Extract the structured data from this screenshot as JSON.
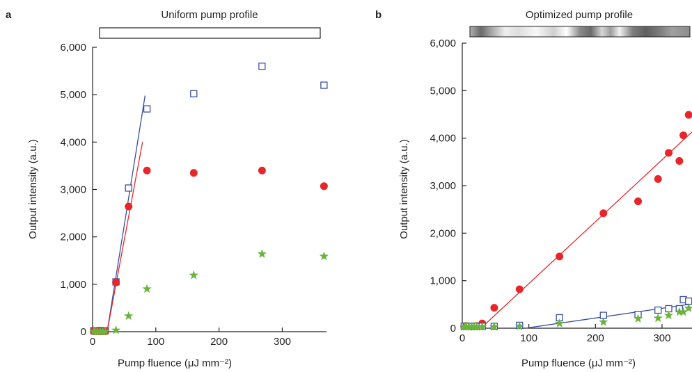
{
  "chart_data": [
    {
      "type": "scatter",
      "panel_label": "a",
      "title": "Uniform pump profile",
      "profile_bar": "uniform",
      "xlabel": "Pump fluence (μJ mm⁻²)",
      "ylabel": "Output intensity (a.u.)",
      "xlim": [
        0,
        370
      ],
      "ylim": [
        0,
        6000
      ],
      "xticks": [
        0,
        100,
        200,
        300
      ],
      "xticklabels": [
        "0",
        "100",
        "200",
        "300"
      ],
      "yticks": [
        0,
        1000,
        2000,
        3000,
        4000,
        5000,
        6000
      ],
      "yticklabels": [
        "0",
        "1,000",
        "2,000",
        "3,000",
        "4,000",
        "5,000",
        "6,000"
      ],
      "series": [
        {
          "marker": "open-square",
          "color": "#3a4fa3",
          "points": [
            [
              2,
              20
            ],
            [
              5,
              15
            ],
            [
              8,
              20
            ],
            [
              12,
              25
            ],
            [
              16,
              10
            ],
            [
              20,
              20
            ],
            [
              37,
              1050
            ],
            [
              57,
              3030
            ],
            [
              86,
              4700
            ],
            [
              160,
              5020
            ],
            [
              268,
              5600
            ],
            [
              366,
              5200
            ]
          ]
        },
        {
          "marker": "filled-circle",
          "color": "#e8262a",
          "points": [
            [
              2,
              10
            ],
            [
              5,
              15
            ],
            [
              8,
              10
            ],
            [
              12,
              5
            ],
            [
              16,
              10
            ],
            [
              20,
              10
            ],
            [
              37,
              1040
            ],
            [
              57,
              2640
            ],
            [
              86,
              3400
            ],
            [
              160,
              3350
            ],
            [
              268,
              3400
            ],
            [
              366,
              3070
            ]
          ]
        },
        {
          "marker": "star",
          "color": "#6ab33e",
          "points": [
            [
              2,
              5
            ],
            [
              5,
              5
            ],
            [
              8,
              5
            ],
            [
              12,
              5
            ],
            [
              16,
              5
            ],
            [
              20,
              5
            ],
            [
              37,
              30
            ],
            [
              57,
              330
            ],
            [
              86,
              900
            ],
            [
              160,
              1190
            ],
            [
              268,
              1640
            ],
            [
              366,
              1590
            ]
          ]
        }
      ],
      "fit_lines": [
        {
          "color": "#3a4fa3",
          "x": [
            23,
            83
          ],
          "y": [
            0,
            4980
          ]
        },
        {
          "color": "#e8262a",
          "x": [
            23,
            79
          ],
          "y": [
            0,
            4000
          ]
        }
      ]
    },
    {
      "type": "scatter",
      "panel_label": "b",
      "title": "Optimized pump profile",
      "profile_bar": "optimized",
      "xlabel": "Pump fluence (μJ mm⁻²)",
      "ylabel": "Output intensity (a.u.)",
      "xlim": [
        0,
        345
      ],
      "ylim": [
        0,
        6000
      ],
      "xticks": [
        0,
        100,
        200,
        300
      ],
      "xticklabels": [
        "0",
        "100",
        "200",
        "300"
      ],
      "yticks": [
        0,
        1000,
        2000,
        3000,
        4000,
        5000,
        6000
      ],
      "yticklabels": [
        "0",
        "1,000",
        "2,000",
        "3,000",
        "4,000",
        "5,000",
        "6,000"
      ],
      "series": [
        {
          "marker": "filled-circle",
          "color": "#e8262a",
          "points": [
            [
              3,
              40
            ],
            [
              6,
              45
            ],
            [
              10,
              40
            ],
            [
              14,
              35
            ],
            [
              18,
              40
            ],
            [
              22,
              45
            ],
            [
              30,
              100
            ],
            [
              48,
              430
            ],
            [
              86,
              820
            ],
            [
              146,
              1510
            ],
            [
              212,
              2420
            ],
            [
              264,
              2670
            ],
            [
              294,
              3140
            ],
            [
              310,
              3690
            ],
            [
              326,
              3520
            ],
            [
              332,
              4060
            ],
            [
              340,
              4490
            ]
          ]
        },
        {
          "marker": "open-square",
          "color": "#3a4fa3",
          "points": [
            [
              3,
              40
            ],
            [
              6,
              40
            ],
            [
              10,
              40
            ],
            [
              14,
              40
            ],
            [
              18,
              40
            ],
            [
              22,
              40
            ],
            [
              30,
              40
            ],
            [
              48,
              40
            ],
            [
              86,
              60
            ],
            [
              146,
              220
            ],
            [
              212,
              270
            ],
            [
              264,
              290
            ],
            [
              294,
              380
            ],
            [
              310,
              410
            ],
            [
              326,
              410
            ],
            [
              332,
              600
            ],
            [
              340,
              570
            ]
          ]
        },
        {
          "marker": "star",
          "color": "#6ab33e",
          "points": [
            [
              3,
              30
            ],
            [
              6,
              30
            ],
            [
              10,
              30
            ],
            [
              14,
              30
            ],
            [
              18,
              30
            ],
            [
              22,
              30
            ],
            [
              30,
              30
            ],
            [
              48,
              30
            ],
            [
              86,
              40
            ],
            [
              146,
              100
            ],
            [
              212,
              130
            ],
            [
              264,
              200
            ],
            [
              294,
              210
            ],
            [
              310,
              270
            ],
            [
              326,
              340
            ],
            [
              332,
              340
            ],
            [
              340,
              420
            ]
          ]
        }
      ],
      "fit_lines": [
        {
          "color": "#e8262a",
          "x": [
            28,
            345
          ],
          "y": [
            0,
            4130
          ]
        },
        {
          "color": "#3a4fa3",
          "x": [
            95,
            345
          ],
          "y": [
            0,
            510
          ]
        }
      ]
    }
  ]
}
